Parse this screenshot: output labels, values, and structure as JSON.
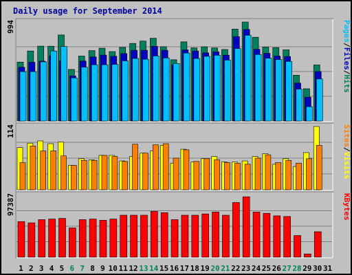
{
  "title": "Daily usage for September 2014",
  "colors": {
    "background": "#c0c0c0",
    "title": "#0000a0",
    "hits": "#007f5f",
    "files": "#0000c0",
    "pages": "#00bfff",
    "visits": "#ffff00",
    "sites": "#ff8000",
    "kbytes": "#ff0000",
    "weekend_label": "#00805c"
  },
  "chart_data": [
    {
      "type": "bar",
      "title": "Daily usage for September 2014",
      "panel": "hits-files-pages",
      "ylabel_parts": [
        "Pages",
        "/",
        "Files",
        "/",
        "Hits"
      ],
      "ymax_label": "994",
      "ylim": [
        0,
        994
      ],
      "grid": true,
      "categories": [
        "1",
        "2",
        "3",
        "4",
        "5",
        "6",
        "7",
        "8",
        "9",
        "10",
        "11",
        "12",
        "13",
        "14",
        "15",
        "16",
        "17",
        "18",
        "19",
        "20",
        "21",
        "22",
        "23",
        "24",
        "25",
        "26",
        "27",
        "28",
        "29",
        "30",
        "31"
      ],
      "series": [
        {
          "name": "Hits",
          "values": [
            592,
            703,
            752,
            751,
            864,
            518,
            652,
            707,
            731,
            697,
            739,
            779,
            803,
            831,
            746,
            615,
            795,
            734,
            745,
            734,
            718,
            923,
            994,
            841,
            742,
            737,
            716,
            460,
            324,
            563,
            0
          ]
        },
        {
          "name": "Files",
          "values": [
            540,
            590,
            601,
            654,
            603,
            453,
            602,
            643,
            662,
            650,
            677,
            710,
            710,
            750,
            710,
            563,
            714,
            703,
            684,
            695,
            661,
            848,
            919,
            720,
            680,
            652,
            648,
            381,
            239,
            497,
            0
          ]
        },
        {
          "name": "Pages",
          "values": [
            496,
            496,
            594,
            703,
            748,
            433,
            541,
            565,
            565,
            568,
            604,
            628,
            620,
            653,
            633,
            578,
            682,
            628,
            650,
            660,
            612,
            727,
            861,
            668,
            630,
            617,
            598,
            320,
            144,
            422,
            0
          ]
        }
      ]
    },
    {
      "type": "bar",
      "panel": "visits-sites",
      "ylabel_parts": [
        "Sites",
        "/",
        "Visits"
      ],
      "ymax_label": "114",
      "ylim": [
        0,
        114
      ],
      "grid": true,
      "categories": [
        "1",
        "2",
        "3",
        "4",
        "5",
        "6",
        "7",
        "8",
        "9",
        "10",
        "11",
        "12",
        "13",
        "14",
        "15",
        "16",
        "17",
        "18",
        "19",
        "20",
        "21",
        "22",
        "23",
        "24",
        "25",
        "26",
        "27",
        "28",
        "29",
        "30",
        "31"
      ],
      "series": [
        {
          "name": "Visits",
          "values": [
            76,
            84,
            88,
            83,
            86,
            44,
            56,
            54,
            62,
            62,
            52,
            60,
            66,
            70,
            80,
            48,
            73,
            50,
            56,
            60,
            50,
            50,
            52,
            60,
            65,
            46,
            56,
            42,
            67,
            114,
            0
          ]
        },
        {
          "name": "Sites",
          "values": [
            49,
            79,
            70,
            70,
            61,
            44,
            53,
            53,
            62,
            60,
            51,
            82,
            66,
            81,
            83,
            57,
            72,
            51,
            56,
            54,
            49,
            48,
            46,
            57,
            63,
            49,
            53,
            48,
            56,
            80,
            0
          ]
        }
      ]
    },
    {
      "type": "bar",
      "panel": "kbytes",
      "ylabel_parts": [
        "KBytes"
      ],
      "ymax_label": "97387",
      "ylim": [
        0,
        97387
      ],
      "grid": true,
      "categories": [
        "1",
        "2",
        "3",
        "4",
        "5",
        "6",
        "7",
        "8",
        "9",
        "10",
        "11",
        "12",
        "13",
        "14",
        "15",
        "16",
        "17",
        "18",
        "19",
        "20",
        "21",
        "22",
        "23",
        "24",
        "25",
        "26",
        "27",
        "28",
        "29",
        "30",
        "31"
      ],
      "series": [
        {
          "name": "KBytes",
          "values": [
            56000,
            54000,
            59000,
            60000,
            61000,
            46000,
            59000,
            60000,
            58000,
            60000,
            66000,
            66000,
            66000,
            72000,
            70000,
            59000,
            66000,
            66000,
            68000,
            71000,
            66000,
            86000,
            95000,
            71000,
            69000,
            65000,
            64000,
            34000,
            5000,
            40000,
            0
          ]
        }
      ]
    }
  ],
  "weekend_days": [
    "6",
    "7",
    "13",
    "14",
    "20",
    "21",
    "27",
    "28"
  ]
}
